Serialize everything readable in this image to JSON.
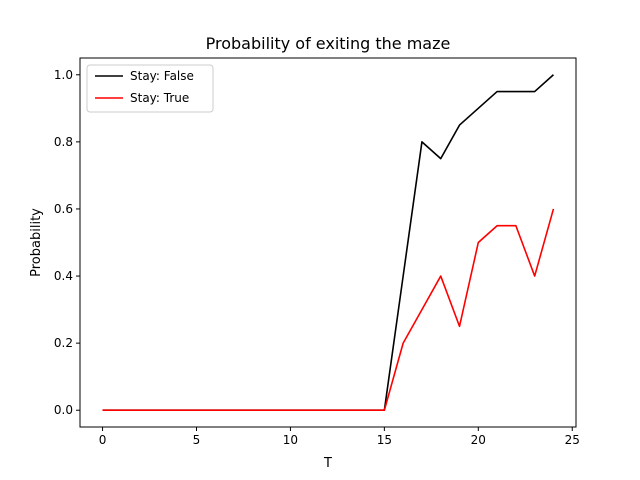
{
  "chart_data": {
    "type": "line",
    "title": "Probability of exiting the maze",
    "xlabel": "T",
    "ylabel": "Probability",
    "xlim": [
      -1.2,
      25.2
    ],
    "ylim": [
      -0.05,
      1.05
    ],
    "xticks": [
      0,
      5,
      10,
      15,
      20,
      25
    ],
    "yticks": [
      0.0,
      0.2,
      0.4,
      0.6,
      0.8,
      1.0
    ],
    "xtick_labels": [
      "0",
      "5",
      "10",
      "15",
      "20",
      "25"
    ],
    "ytick_labels": [
      "0.0",
      "0.2",
      "0.4",
      "0.6",
      "0.8",
      "1.0"
    ],
    "grid": false,
    "legend_position": "top-left",
    "x": [
      0,
      1,
      2,
      3,
      4,
      5,
      6,
      7,
      8,
      9,
      10,
      11,
      12,
      13,
      14,
      15,
      16,
      17,
      18,
      19,
      20,
      21,
      22,
      23,
      24
    ],
    "series": [
      {
        "name": "Stay: False",
        "color": "#000000",
        "values": [
          0,
          0,
          0,
          0,
          0,
          0,
          0,
          0,
          0,
          0,
          0,
          0,
          0,
          0,
          0,
          0,
          0.4,
          0.8,
          0.75,
          0.85,
          0.9,
          0.95,
          0.95,
          0.95,
          1.0
        ]
      },
      {
        "name": "Stay: True",
        "color": "#ff0000",
        "values": [
          0,
          0,
          0,
          0,
          0,
          0,
          0,
          0,
          0,
          0,
          0,
          0,
          0,
          0,
          0,
          0,
          0.2,
          0.3,
          0.4,
          0.25,
          0.5,
          0.55,
          0.55,
          0.4,
          0.6
        ]
      }
    ]
  }
}
